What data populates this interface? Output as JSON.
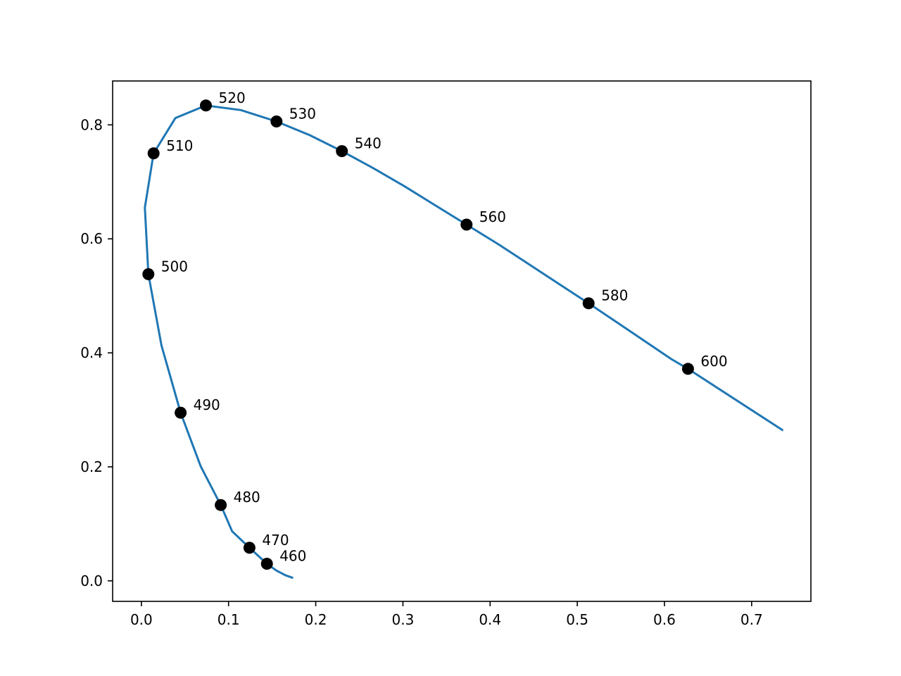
{
  "chart_data": {
    "type": "line",
    "title": "",
    "xlabel": "",
    "ylabel": "",
    "xlim": [
      -0.033,
      0.768
    ],
    "ylim": [
      -0.036,
      0.877
    ],
    "xticks": [
      "0.0",
      "0.1",
      "0.2",
      "0.3",
      "0.4",
      "0.5",
      "0.6",
      "0.7"
    ],
    "yticks": [
      "0.0",
      "0.2",
      "0.4",
      "0.6",
      "0.8"
    ],
    "grid": false,
    "colors": {
      "line": "#1f77b4",
      "marker": "#000000"
    },
    "series": [
      {
        "x": [
          0.174,
          0.165,
          0.155,
          0.144,
          0.124,
          0.104,
          0.091,
          0.068,
          0.045,
          0.023,
          0.008,
          0.004,
          0.014,
          0.039,
          0.074,
          0.114,
          0.155,
          0.193,
          0.23,
          0.266,
          0.302,
          0.337,
          0.373,
          0.409,
          0.444,
          0.479,
          0.513,
          0.547,
          0.579,
          0.608,
          0.627,
          0.736
        ],
        "y": [
          0.005,
          0.01,
          0.018,
          0.03,
          0.058,
          0.087,
          0.133,
          0.201,
          0.295,
          0.413,
          0.538,
          0.655,
          0.75,
          0.812,
          0.834,
          0.826,
          0.806,
          0.782,
          0.754,
          0.724,
          0.692,
          0.659,
          0.625,
          0.591,
          0.556,
          0.521,
          0.487,
          0.452,
          0.419,
          0.389,
          0.372,
          0.264
        ]
      }
    ],
    "points": [
      {
        "label": "460",
        "x": 0.144,
        "y": 0.03
      },
      {
        "label": "470",
        "x": 0.124,
        "y": 0.058
      },
      {
        "label": "480",
        "x": 0.091,
        "y": 0.133
      },
      {
        "label": "490",
        "x": 0.045,
        "y": 0.295
      },
      {
        "label": "500",
        "x": 0.008,
        "y": 0.538
      },
      {
        "label": "510",
        "x": 0.014,
        "y": 0.75
      },
      {
        "label": "520",
        "x": 0.074,
        "y": 0.834
      },
      {
        "label": "530",
        "x": 0.155,
        "y": 0.806
      },
      {
        "label": "540",
        "x": 0.23,
        "y": 0.754
      },
      {
        "label": "560",
        "x": 0.373,
        "y": 0.625
      },
      {
        "label": "580",
        "x": 0.513,
        "y": 0.487
      },
      {
        "label": "600",
        "x": 0.627,
        "y": 0.372
      }
    ]
  }
}
